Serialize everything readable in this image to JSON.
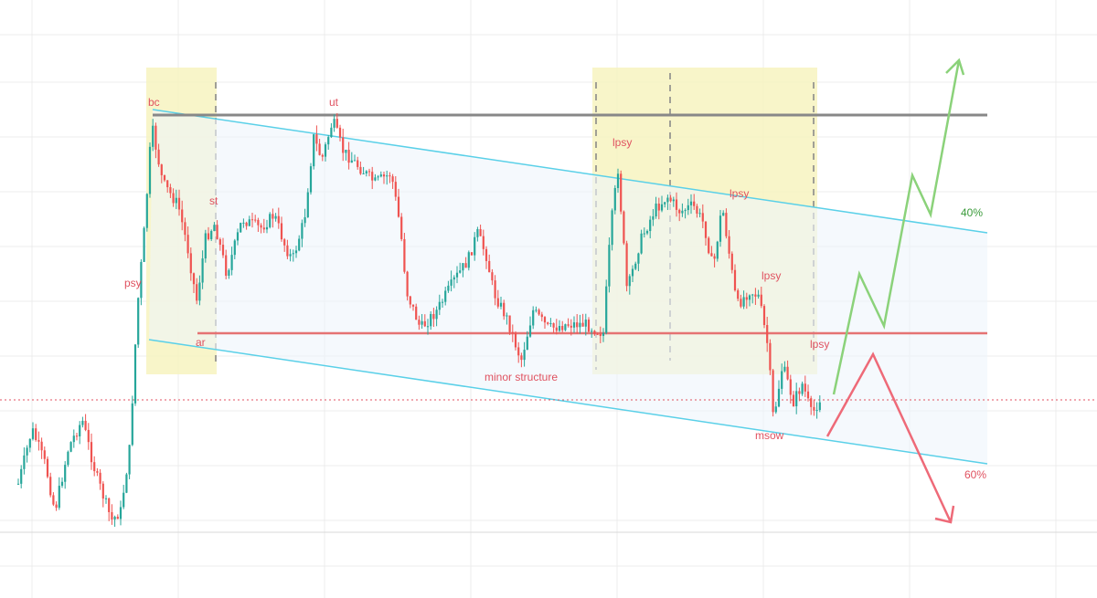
{
  "colors": {
    "up": "#26a69a",
    "down": "#ef5350",
    "channel": "#5ad0e8",
    "resistance": "#888888",
    "support": "#e57373",
    "box": "#f7f3c0",
    "bullish_path": "#8bd27a",
    "bearish_path": "#ee6a78",
    "grid": "#ececec",
    "price_line": "#e05260"
  },
  "chart_data": {
    "type": "candlestick",
    "annotations": [
      "bc",
      "ut",
      "lpsy",
      "lpsy",
      "st",
      "psy",
      "lpsy",
      "ar",
      "lpsy",
      "minor structure",
      "msow"
    ],
    "scenarios": [
      "40%",
      "60%"
    ],
    "horizontal_levels": [
      "resistance",
      "support",
      "current price"
    ],
    "zones": 2,
    "grid": true,
    "legend": "none"
  }
}
